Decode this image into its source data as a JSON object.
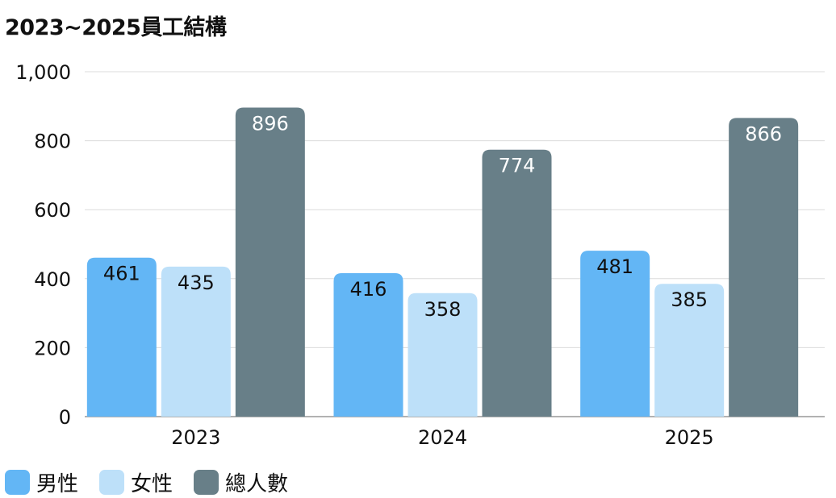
{
  "chart_data": {
    "type": "bar",
    "title": "2023~2025員工結構",
    "categories": [
      "2023",
      "2024",
      "2025"
    ],
    "series": [
      {
        "name": "男性",
        "values": [
          461,
          416,
          481
        ],
        "color": "#63b6f5"
      },
      {
        "name": "女性",
        "values": [
          435,
          358,
          385
        ],
        "color": "#bde0f9"
      },
      {
        "name": "總人數",
        "values": [
          896,
          774,
          866
        ],
        "color": "#687f88"
      }
    ],
    "ylim": [
      0,
      1000
    ],
    "yticks": [
      "0",
      "200",
      "400",
      "600",
      "800",
      "1,000"
    ],
    "grid": true,
    "legend": "bottom-left",
    "data_labels": true
  }
}
